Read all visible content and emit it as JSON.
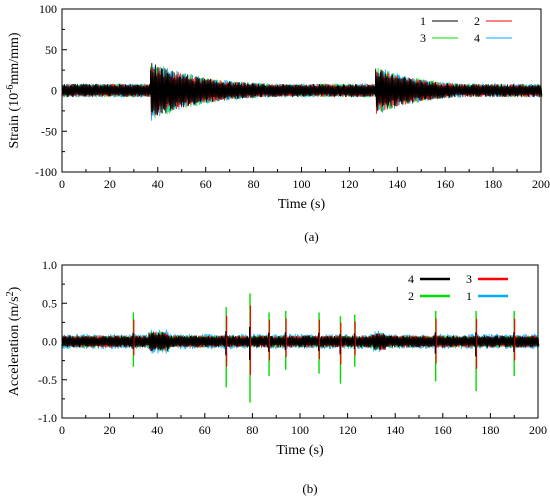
{
  "chart_data": [
    {
      "type": "line",
      "panel_label": "(a)",
      "xlabel": "Time (s)",
      "ylabel": "Strain (10",
      "ylabel_sup": "-6",
      "ylabel_tail": "mm/mm)",
      "xlim": [
        0,
        200
      ],
      "ylim": [
        -100,
        100
      ],
      "x_ticks": [
        "0",
        "20",
        "40",
        "60",
        "80",
        "100",
        "120",
        "140",
        "160",
        "180",
        "200"
      ],
      "y_ticks": [
        "100",
        "50",
        "0",
        "-50",
        "-100"
      ],
      "legend_position": "top-right",
      "legend_columns": 2,
      "baseline_amplitude": 8,
      "events": [
        {
          "t": 37,
          "peak": 30,
          "decay_s": 22
        },
        {
          "t": 131,
          "peak": 24,
          "decay_s": 18
        }
      ],
      "series": [
        {
          "name": "1",
          "color": "#000000"
        },
        {
          "name": "2",
          "color": "#ff0000"
        },
        {
          "name": "3",
          "color": "#00dd00"
        },
        {
          "name": "4",
          "color": "#00aaff"
        }
      ]
    },
    {
      "type": "line",
      "panel_label": "(b)",
      "xlabel": "Time (s)",
      "ylabel": "Acceleration (m/s",
      "ylabel_sup": "2",
      "ylabel_tail": ")",
      "xlim": [
        0,
        200
      ],
      "ylim": [
        -1.0,
        1.0
      ],
      "x_ticks": [
        "0",
        "20",
        "40",
        "60",
        "80",
        "100",
        "120",
        "140",
        "160",
        "180",
        "200"
      ],
      "y_ticks": [
        "1.0",
        "0.5",
        "0.0",
        "-0.5",
        "-1.0"
      ],
      "legend_position": "top-right",
      "legend_columns": 2,
      "baseline_amplitude": 0.08,
      "spikes": [
        {
          "t": 30,
          "up": 0.38,
          "down": -0.33
        },
        {
          "t": 69,
          "up": 0.45,
          "down": -0.6
        },
        {
          "t": 79,
          "up": 0.63,
          "down": -0.8
        },
        {
          "t": 87,
          "up": 0.38,
          "down": -0.45
        },
        {
          "t": 94,
          "up": 0.4,
          "down": -0.37
        },
        {
          "t": 108,
          "up": 0.38,
          "down": -0.42
        },
        {
          "t": 117,
          "up": 0.33,
          "down": -0.55
        },
        {
          "t": 123,
          "up": 0.35,
          "down": -0.33
        },
        {
          "t": 157,
          "up": 0.4,
          "down": -0.52
        },
        {
          "t": 174,
          "up": 0.4,
          "down": -0.65
        },
        {
          "t": 190,
          "up": 0.4,
          "down": -0.45
        }
      ],
      "series": [
        {
          "name": "4",
          "color": "#000000"
        },
        {
          "name": "3",
          "color": "#ff0000"
        },
        {
          "name": "2",
          "color": "#00dd00"
        },
        {
          "name": "1",
          "color": "#00aaff"
        }
      ]
    }
  ]
}
